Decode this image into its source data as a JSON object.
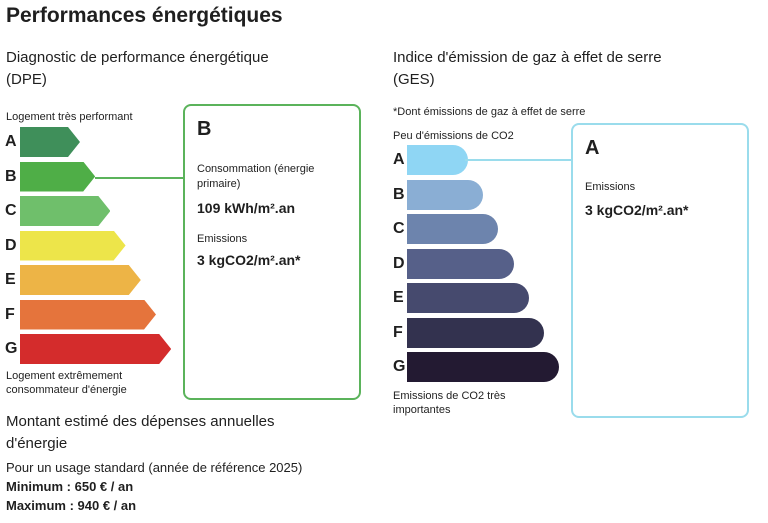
{
  "title": "Performances énergétiques",
  "dpe": {
    "heading_line1": "Diagnostic de performance énergétique",
    "heading_line2": "(DPE)",
    "top_label": "Logement très performant",
    "bottom_label_line1": "Logement extrêmement",
    "bottom_label_line2": "consommateur d'énergie",
    "grades": [
      {
        "letter": "A",
        "color": "#3f8f5a"
      },
      {
        "letter": "B",
        "color": "#4fae47"
      },
      {
        "letter": "C",
        "color": "#6fbf6b"
      },
      {
        "letter": "D",
        "color": "#ede54a"
      },
      {
        "letter": "E",
        "color": "#edb446"
      },
      {
        "letter": "F",
        "color": "#e5743c"
      },
      {
        "letter": "G",
        "color": "#d42c2c"
      }
    ],
    "selected": "B",
    "card": {
      "grade": "B",
      "consumption_label": "Consommation (énergie primaire)",
      "consumption_value": "109 kWh/m².an",
      "emissions_label": "Emissions",
      "emissions_value": "3 kgCO2/m².an*",
      "border_color": "#5bb35b"
    }
  },
  "ges": {
    "heading_line1": "Indice d'émission de gaz à effet de serre",
    "heading_line2": "(GES)",
    "note": "*Dont émissions de gaz à effet de serre",
    "top_label": "Peu d'émissions de CO2",
    "bottom_label_line1": "Emissions de CO2 très",
    "bottom_label_line2": "importantes",
    "grades": [
      {
        "letter": "A",
        "color": "#8fd6f4"
      },
      {
        "letter": "B",
        "color": "#8aaed4"
      },
      {
        "letter": "C",
        "color": "#6d84ad"
      },
      {
        "letter": "D",
        "color": "#566089"
      },
      {
        "letter": "E",
        "color": "#464a6e"
      },
      {
        "letter": "F",
        "color": "#33324f"
      },
      {
        "letter": "G",
        "color": "#231a32"
      }
    ],
    "selected": "A",
    "card": {
      "grade": "A",
      "emissions_label": "Emissions",
      "emissions_value": "3 kgCO2/m².an*",
      "border_color": "#9adcec"
    }
  },
  "costs": {
    "heading_line1": "Montant estimé des dépenses annuelles",
    "heading_line2": "d'énergie",
    "usage": "Pour un usage standard (année de référence 2025)",
    "minimum": "Minimum : 650 € / an",
    "maximum": "Maximum : 940 € / an"
  }
}
